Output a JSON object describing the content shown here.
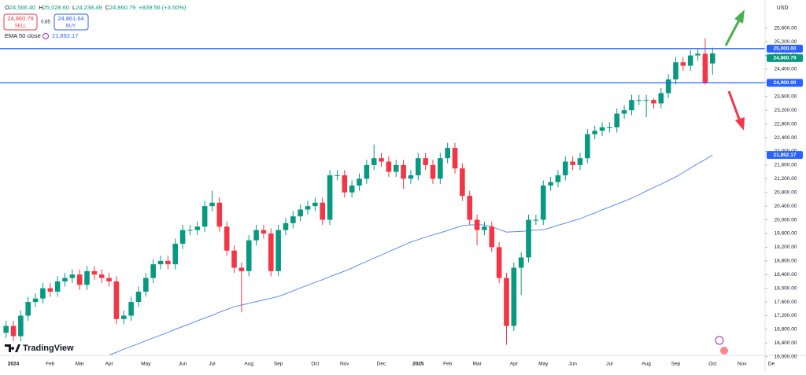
{
  "header": {
    "ohlc": [
      {
        "key": "O",
        "value": "24,566.40"
      },
      {
        "key": "H",
        "value": "25,028.60"
      },
      {
        "key": "L",
        "value": "24,238.49"
      },
      {
        "key": "C",
        "value": "24,860.79"
      }
    ],
    "change": "+839.56 (+3.50%)",
    "sell_price": "24,860.79",
    "sell": "SELL",
    "spread": "0.85",
    "buy_price": "24,861.64",
    "buy": "BUY",
    "currency": "USD",
    "branding": "TradingView"
  },
  "chart_data": {
    "type": "candlestick",
    "up_color": "#089981",
    "down_color": "#f23645",
    "categories": [
      null,
      "2024",
      null,
      null,
      null,
      null,
      "Feb",
      null,
      null,
      null,
      "Mar",
      null,
      null,
      null,
      "Apr",
      null,
      null,
      null,
      null,
      "May",
      null,
      null,
      null,
      null,
      "Jun",
      null,
      null,
      null,
      "Jul",
      null,
      null,
      null,
      null,
      "Aug",
      null,
      null,
      null,
      "Sep",
      null,
      null,
      null,
      null,
      "Oct",
      null,
      null,
      null,
      "Nov",
      null,
      null,
      null,
      null,
      "Dec",
      null,
      null,
      null,
      null,
      "2025",
      null,
      null,
      null,
      "Feb",
      null,
      null,
      null,
      "Mar",
      null,
      null,
      null,
      null,
      "Apr",
      null,
      null,
      null,
      "May",
      null,
      null,
      null,
      "Jun",
      null,
      null,
      null,
      null,
      "Jul",
      null,
      null,
      null,
      null,
      "Aug",
      null,
      null,
      null,
      "Sep",
      null,
      null,
      null,
      null,
      "Oct",
      null,
      null,
      null,
      "Nov",
      null,
      null,
      null,
      "De"
    ],
    "open": [
      16700,
      16900,
      16600,
      17200,
      17600,
      17700,
      18000,
      17900,
      18200,
      18300,
      18400,
      18100,
      18500,
      18400,
      18300,
      18200,
      17100,
      17200,
      17600,
      17900,
      18300,
      18700,
      18800,
      18700,
      19300,
      19700,
      19700,
      19800,
      20400,
      20500,
      19800,
      19100,
      18600,
      18500,
      19400,
      19700,
      19600,
      18500,
      19700,
      19900,
      20100,
      20300,
      20400,
      20500,
      20000,
      21300,
      21300,
      20800,
      21000,
      21200,
      21600,
      21800,
      21700,
      21400,
      21600,
      21200,
      21300,
      21800,
      21600,
      21200,
      21800,
      22100,
      21500,
      20700,
      20000,
      19700,
      19800,
      19200,
      18300,
      16900,
      18600,
      18900,
      20000,
      20000,
      21000,
      21100,
      21300,
      21700,
      21600,
      21800,
      22500,
      22600,
      22700,
      22700,
      23100,
      23200,
      23500,
      23500,
      23500,
      23400,
      23700,
      24100,
      24600,
      24500,
      24800,
      24850,
      24566.4,
      null,
      null,
      null,
      null,
      null,
      null,
      null,
      null
    ],
    "high": [
      17050,
      17050,
      17350,
      17750,
      17850,
      18150,
      18150,
      18350,
      18450,
      18550,
      18550,
      18650,
      18650,
      18550,
      18450,
      18350,
      17350,
      17750,
      18050,
      18450,
      18850,
      18950,
      18950,
      19450,
      19850,
      19850,
      19950,
      20550,
      20850,
      20650,
      19950,
      19250,
      18750,
      19550,
      19850,
      19850,
      19750,
      19850,
      20050,
      20250,
      20450,
      20550,
      20650,
      20650,
      21450,
      21450,
      21450,
      21150,
      21350,
      21750,
      22200,
      21950,
      21850,
      21750,
      21750,
      21450,
      21950,
      21950,
      21750,
      21950,
      22250,
      22250,
      21650,
      20850,
      20150,
      19950,
      19950,
      19350,
      18450,
      18750,
      19050,
      20150,
      20150,
      21150,
      21250,
      21450,
      21850,
      21850,
      21950,
      22650,
      22750,
      22850,
      22850,
      23250,
      23350,
      23650,
      23650,
      23650,
      23550,
      23850,
      24250,
      24750,
      24750,
      24950,
      25000,
      25300,
      25028.6,
      null,
      null,
      null,
      null,
      null,
      null,
      null,
      null
    ],
    "low": [
      16550,
      16450,
      16450,
      17050,
      17450,
      17550,
      17750,
      17750,
      18050,
      18150,
      17950,
      17950,
      18250,
      18150,
      18050,
      16950,
      16950,
      17050,
      17450,
      17750,
      18150,
      18550,
      18550,
      18550,
      19150,
      19550,
      19550,
      19650,
      20250,
      19650,
      18950,
      18450,
      17300,
      18350,
      19250,
      19450,
      18350,
      18350,
      19550,
      19750,
      19950,
      20150,
      20250,
      19850,
      19850,
      21150,
      20650,
      20650,
      20850,
      21050,
      21450,
      21550,
      21250,
      21250,
      20900,
      21050,
      21150,
      21450,
      21050,
      21050,
      21650,
      21350,
      20550,
      19850,
      19250,
      19550,
      19050,
      18150,
      16350,
      16750,
      17800,
      18750,
      19850,
      19850,
      20850,
      20950,
      21150,
      21450,
      21450,
      21650,
      22350,
      22450,
      22550,
      22550,
      22950,
      23050,
      23350,
      23000,
      23250,
      23250,
      23550,
      23950,
      24350,
      24350,
      24650,
      23950,
      24238.49,
      null,
      null,
      null,
      null,
      null,
      null,
      null,
      null
    ],
    "close": [
      16900,
      16600,
      17200,
      17600,
      17700,
      18000,
      17900,
      18200,
      18300,
      18400,
      18100,
      18500,
      18400,
      18300,
      18200,
      17100,
      17200,
      17600,
      17900,
      18300,
      18700,
      18800,
      18700,
      19300,
      19700,
      19700,
      19800,
      20400,
      20500,
      19800,
      19100,
      18600,
      18500,
      19400,
      19700,
      19600,
      18500,
      19700,
      19900,
      20100,
      20300,
      20400,
      20500,
      20000,
      21300,
      21300,
      20800,
      21000,
      21200,
      21600,
      21800,
      21700,
      21400,
      21600,
      21200,
      21300,
      21800,
      21600,
      21200,
      21800,
      22100,
      21500,
      20700,
      20000,
      19700,
      19800,
      19200,
      18300,
      16900,
      18600,
      18900,
      20000,
      20000,
      21000,
      21100,
      21300,
      21700,
      21600,
      21800,
      22500,
      22600,
      22700,
      22700,
      23100,
      23200,
      23500,
      23500,
      23500,
      23400,
      23700,
      24100,
      24600,
      24500,
      24800,
      24850,
      24000,
      24860.79,
      null,
      null,
      null,
      null,
      null,
      null,
      null,
      null
    ],
    "last_price_label": "24,860.79",
    "indicator": {
      "name": "EMA 50 close",
      "value_label": "21,892.17",
      "color": "#5b8def",
      "values": [
        null,
        null,
        null,
        null,
        null,
        null,
        null,
        null,
        null,
        null,
        null,
        null,
        null,
        null,
        16050,
        16130,
        16220,
        16300,
        16380,
        16470,
        16550,
        16630,
        16710,
        16800,
        16880,
        16960,
        17050,
        17130,
        17210,
        17300,
        17380,
        17460,
        17510,
        17560,
        17610,
        17660,
        17710,
        17760,
        17840,
        17920,
        18010,
        18090,
        18170,
        18250,
        18340,
        18420,
        18500,
        18590,
        18690,
        18780,
        18880,
        18970,
        19070,
        19160,
        19260,
        19350,
        19420,
        19490,
        19560,
        19620,
        19690,
        19760,
        19830,
        19850,
        19860,
        19850,
        19800,
        19720,
        19640,
        19650,
        19660,
        19680,
        19700,
        19710,
        19770,
        19840,
        19900,
        19970,
        20030,
        20120,
        20200,
        20290,
        20370,
        20460,
        20540,
        20630,
        20730,
        20840,
        20940,
        21040,
        21150,
        21250,
        21380,
        21510,
        21640,
        21760,
        21892.17,
        null,
        null,
        null,
        null,
        null,
        null,
        null,
        null
      ]
    },
    "hlines": [
      {
        "value": 25000,
        "label": "25,000.00"
      },
      {
        "value": 24000,
        "label": "24,000.00"
      }
    ],
    "hline_color": "#2962ff",
    "ylim": [
      16040,
      26420
    ],
    "yticks": [
      {
        "value": 16000,
        "label": "16,000.00"
      },
      {
        "value": 16400,
        "label": "16,400.00"
      },
      {
        "value": 16800,
        "label": "16,800.00"
      },
      {
        "value": 17200,
        "label": "17,200.00"
      },
      {
        "value": 17600,
        "label": "17,600.00"
      },
      {
        "value": 18000,
        "label": "18,000.00"
      },
      {
        "value": 18400,
        "label": "18,400.00"
      },
      {
        "value": 18800,
        "label": "18,800.00"
      },
      {
        "value": 19200,
        "label": "19,200.00"
      },
      {
        "value": 19600,
        "label": "19,600.00"
      },
      {
        "value": 20000,
        "label": "20,000.00"
      },
      {
        "value": 20400,
        "label": "20,400.00"
      },
      {
        "value": 20800,
        "label": "20,800.00"
      },
      {
        "value": 21200,
        "label": "21,200.00"
      },
      {
        "value": 21600,
        "label": "21,600.00"
      },
      {
        "value": 22000,
        "label": "22,000.00"
      },
      {
        "value": 22400,
        "label": "22,400.00"
      },
      {
        "value": 22800,
        "label": "22,800.00"
      },
      {
        "value": 23200,
        "label": "23,200.00"
      },
      {
        "value": 23600,
        "label": "23,600.00"
      },
      {
        "value": 24000,
        "label": "24,000.00"
      },
      {
        "value": 24400,
        "label": "24,400.00"
      },
      {
        "value": 24800,
        "label": "24,800.00"
      },
      {
        "value": 25200,
        "label": "25,200.00"
      },
      {
        "value": 25600,
        "label": "25,600.00"
      }
    ]
  }
}
